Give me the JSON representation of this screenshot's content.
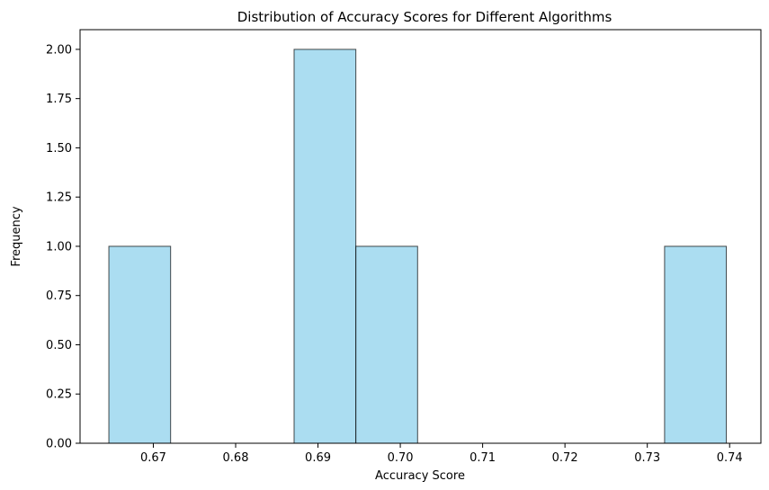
{
  "chart_data": {
    "type": "bar",
    "title": "Distribution of Accuracy Scores for Different Algorithms",
    "xlabel": "Accuracy Score",
    "ylabel": "Frequency",
    "xlim": [
      0.6611,
      0.7438
    ],
    "ylim": [
      0,
      2.1
    ],
    "bins": [
      {
        "start": 0.6646,
        "end": 0.6721,
        "count": 1
      },
      {
        "start": 0.6721,
        "end": 0.6796,
        "count": 0
      },
      {
        "start": 0.6796,
        "end": 0.6871,
        "count": 0
      },
      {
        "start": 0.6871,
        "end": 0.6946,
        "count": 2
      },
      {
        "start": 0.6946,
        "end": 0.7021,
        "count": 1
      },
      {
        "start": 0.7021,
        "end": 0.7096,
        "count": 0
      },
      {
        "start": 0.7096,
        "end": 0.7171,
        "count": 0
      },
      {
        "start": 0.7171,
        "end": 0.7246,
        "count": 0
      },
      {
        "start": 0.7246,
        "end": 0.7321,
        "count": 0
      },
      {
        "start": 0.7321,
        "end": 0.7396,
        "count": 1
      }
    ],
    "xticks": [
      0.67,
      0.68,
      0.69,
      0.7,
      0.71,
      0.72,
      0.73,
      0.74
    ],
    "xtick_labels": [
      "0.67",
      "0.68",
      "0.69",
      "0.70",
      "0.71",
      "0.72",
      "0.73",
      "0.74"
    ],
    "yticks": [
      0,
      0.25,
      0.5,
      0.75,
      1.0,
      1.25,
      1.5,
      1.75,
      2.0
    ],
    "ytick_labels": [
      "0.00",
      "0.25",
      "0.50",
      "0.75",
      "1.00",
      "1.25",
      "1.50",
      "1.75",
      "2.00"
    ],
    "grid": false,
    "colors": {
      "bar_fill": "#87CEEB",
      "bar_edge": "#000000"
    }
  }
}
